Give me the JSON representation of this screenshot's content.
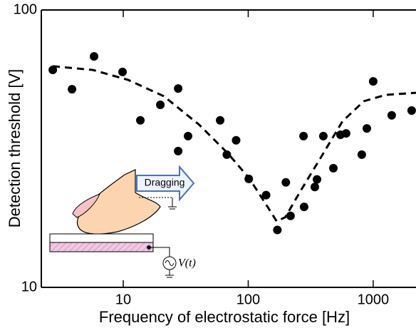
{
  "chart_data": {
    "type": "scatter",
    "xlabel": "Frequency of electrostatic force [Hz]",
    "ylabel": "Detection threshold [V]",
    "xscale": "log",
    "yscale": "log",
    "xlim": [
      2.21,
      2200
    ],
    "ylim": [
      10,
      100
    ],
    "xticks": [
      10,
      100,
      1000
    ],
    "yticks": [
      10,
      100
    ],
    "annotations": [
      "Dragging",
      "V(t)"
    ],
    "series": [
      {
        "type": "scatter",
        "color": "#000000",
        "x": [
          2.73,
          3.89,
          5.84,
          9.87,
          13.7,
          19.8,
          27.5,
          27.5,
          33.0,
          59.6,
          67.4,
          80,
          101,
          139,
          171,
          200,
          218,
          280,
          277,
          341,
          355,
          399,
          480,
          547,
          607,
          810,
          889,
          1000,
          1406,
          2031
        ],
        "values": [
          60.8,
          51.8,
          68.0,
          59.8,
          40.0,
          45.5,
          52.1,
          31.0,
          35.1,
          40.0,
          30.1,
          33.9,
          24.6,
          21.5,
          16.1,
          23.9,
          18.1,
          19.5,
          35.1,
          23.0,
          24.5,
          35.1,
          26.9,
          35.5,
          35.9,
          30.1,
          37.4,
          55.3,
          41.7,
          43.4
        ]
      },
      {
        "type": "line",
        "color": "#000000",
        "dashed": true,
        "x": [
          2.73,
          5.69,
          10.9,
          21.1,
          40.7,
          68.8,
          102,
          143,
          169,
          198,
          258,
          383,
          568,
          842,
          1250,
          2200
        ],
        "values": [
          62.7,
          60.8,
          56.0,
          48.9,
          38.5,
          30.4,
          24.7,
          19.5,
          17.3,
          17.9,
          22.0,
          29.5,
          39.7,
          46.9,
          49.4,
          50.3
        ]
      }
    ]
  }
}
